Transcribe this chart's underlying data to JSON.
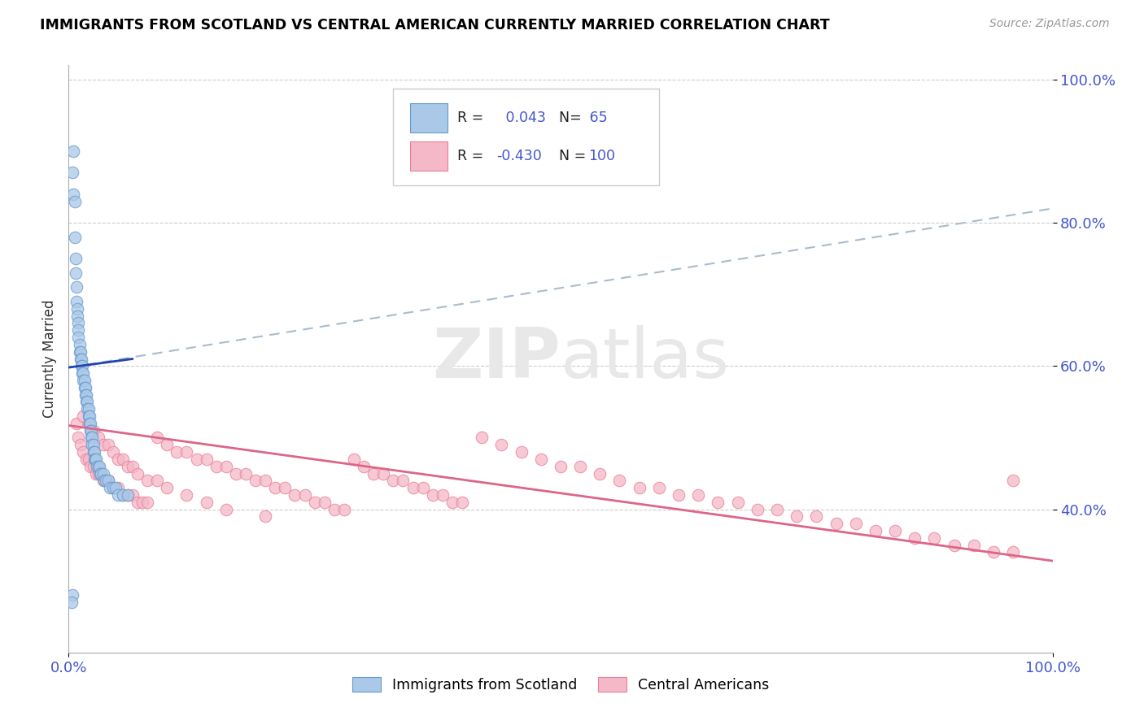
{
  "title": "IMMIGRANTS FROM SCOTLAND VS CENTRAL AMERICAN CURRENTLY MARRIED CORRELATION CHART",
  "source": "Source: ZipAtlas.com",
  "ylabel": "Currently Married",
  "xlim": [
    0.0,
    1.0
  ],
  "ylim": [
    0.2,
    1.02
  ],
  "x_tick_labels": [
    "0.0%",
    "100.0%"
  ],
  "y_ticks": [
    0.4,
    0.6,
    0.8,
    1.0
  ],
  "y_tick_labels": [
    "40.0%",
    "60.0%",
    "80.0%",
    "100.0%"
  ],
  "blue_color": "#aac8e8",
  "blue_edge_color": "#6699cc",
  "pink_color": "#f4b8c8",
  "pink_edge_color": "#e88099",
  "blue_line_color": "#2244aa",
  "pink_line_color": "#dd6688",
  "dashed_line_color": "#aabbcc",
  "watermark_color": "#dddddd",
  "background_color": "#ffffff",
  "blue_line_x0": 0.0,
  "blue_line_x1": 0.065,
  "blue_line_y0": 0.598,
  "blue_line_y1": 0.61,
  "pink_line_x0": 0.0,
  "pink_line_x1": 1.0,
  "pink_line_y0": 0.517,
  "pink_line_y1": 0.328,
  "dash_line_x0": 0.0,
  "dash_line_x1": 1.0,
  "dash_line_y0": 0.598,
  "dash_line_y1": 0.82,
  "scatter1_x": [
    0.004,
    0.005,
    0.005,
    0.006,
    0.006,
    0.007,
    0.007,
    0.008,
    0.008,
    0.009,
    0.009,
    0.01,
    0.01,
    0.01,
    0.011,
    0.011,
    0.012,
    0.012,
    0.013,
    0.013,
    0.014,
    0.014,
    0.015,
    0.015,
    0.016,
    0.016,
    0.017,
    0.017,
    0.018,
    0.018,
    0.019,
    0.019,
    0.02,
    0.02,
    0.021,
    0.021,
    0.022,
    0.022,
    0.023,
    0.023,
    0.024,
    0.024,
    0.025,
    0.025,
    0.026,
    0.026,
    0.027,
    0.028,
    0.029,
    0.03,
    0.031,
    0.032,
    0.033,
    0.035,
    0.036,
    0.038,
    0.04,
    0.042,
    0.045,
    0.048,
    0.05,
    0.055,
    0.06,
    0.004,
    0.003
  ],
  "scatter1_y": [
    0.87,
    0.9,
    0.84,
    0.83,
    0.78,
    0.75,
    0.73,
    0.71,
    0.69,
    0.68,
    0.67,
    0.66,
    0.65,
    0.64,
    0.63,
    0.62,
    0.62,
    0.61,
    0.61,
    0.6,
    0.6,
    0.59,
    0.59,
    0.58,
    0.58,
    0.57,
    0.57,
    0.56,
    0.56,
    0.55,
    0.55,
    0.54,
    0.54,
    0.53,
    0.53,
    0.52,
    0.52,
    0.51,
    0.51,
    0.5,
    0.5,
    0.49,
    0.49,
    0.48,
    0.48,
    0.47,
    0.47,
    0.47,
    0.46,
    0.46,
    0.46,
    0.45,
    0.45,
    0.45,
    0.44,
    0.44,
    0.44,
    0.43,
    0.43,
    0.43,
    0.42,
    0.42,
    0.42,
    0.28,
    0.27
  ],
  "scatter2_x": [
    0.008,
    0.01,
    0.012,
    0.015,
    0.018,
    0.02,
    0.022,
    0.025,
    0.028,
    0.03,
    0.035,
    0.04,
    0.045,
    0.05,
    0.055,
    0.06,
    0.065,
    0.07,
    0.075,
    0.08,
    0.09,
    0.1,
    0.11,
    0.12,
    0.13,
    0.14,
    0.15,
    0.16,
    0.17,
    0.18,
    0.19,
    0.2,
    0.21,
    0.22,
    0.23,
    0.24,
    0.25,
    0.26,
    0.27,
    0.28,
    0.29,
    0.3,
    0.31,
    0.32,
    0.33,
    0.34,
    0.35,
    0.36,
    0.37,
    0.38,
    0.39,
    0.4,
    0.42,
    0.44,
    0.46,
    0.48,
    0.5,
    0.52,
    0.54,
    0.56,
    0.58,
    0.6,
    0.62,
    0.64,
    0.66,
    0.68,
    0.7,
    0.72,
    0.74,
    0.76,
    0.78,
    0.8,
    0.82,
    0.84,
    0.86,
    0.88,
    0.9,
    0.92,
    0.94,
    0.96,
    0.015,
    0.02,
    0.025,
    0.03,
    0.035,
    0.04,
    0.045,
    0.05,
    0.055,
    0.06,
    0.065,
    0.07,
    0.08,
    0.09,
    0.1,
    0.12,
    0.14,
    0.16,
    0.2,
    0.96
  ],
  "scatter2_y": [
    0.52,
    0.5,
    0.49,
    0.48,
    0.47,
    0.47,
    0.46,
    0.46,
    0.45,
    0.45,
    0.44,
    0.44,
    0.43,
    0.43,
    0.42,
    0.42,
    0.42,
    0.41,
    0.41,
    0.41,
    0.5,
    0.49,
    0.48,
    0.48,
    0.47,
    0.47,
    0.46,
    0.46,
    0.45,
    0.45,
    0.44,
    0.44,
    0.43,
    0.43,
    0.42,
    0.42,
    0.41,
    0.41,
    0.4,
    0.4,
    0.47,
    0.46,
    0.45,
    0.45,
    0.44,
    0.44,
    0.43,
    0.43,
    0.42,
    0.42,
    0.41,
    0.41,
    0.5,
    0.49,
    0.48,
    0.47,
    0.46,
    0.46,
    0.45,
    0.44,
    0.43,
    0.43,
    0.42,
    0.42,
    0.41,
    0.41,
    0.4,
    0.4,
    0.39,
    0.39,
    0.38,
    0.38,
    0.37,
    0.37,
    0.36,
    0.36,
    0.35,
    0.35,
    0.34,
    0.34,
    0.53,
    0.52,
    0.51,
    0.5,
    0.49,
    0.49,
    0.48,
    0.47,
    0.47,
    0.46,
    0.46,
    0.45,
    0.44,
    0.44,
    0.43,
    0.42,
    0.41,
    0.4,
    0.39,
    0.44
  ]
}
